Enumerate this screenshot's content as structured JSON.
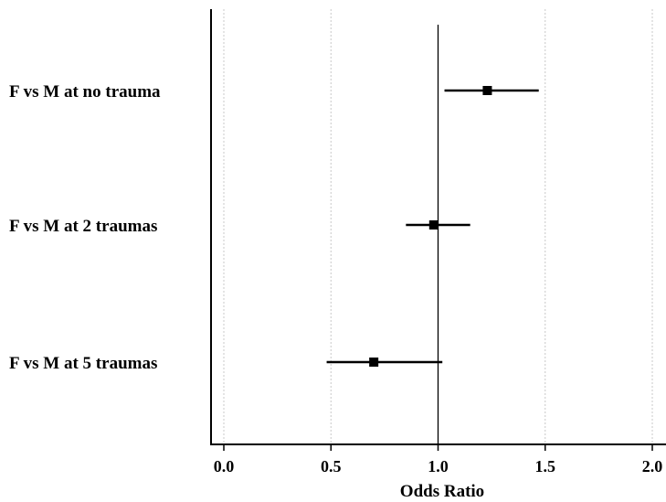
{
  "chart_data": {
    "type": "scatter",
    "subtype": "forest-plot",
    "title": "",
    "xlabel": "Odds Ratio",
    "ylabel": "",
    "xlim": [
      -0.03,
      2.05
    ],
    "xticks": [
      0.0,
      0.5,
      1.0,
      1.5,
      2.0
    ],
    "xtick_labels": [
      "0.0",
      "0.5",
      "1.0",
      "1.5",
      "2.0"
    ],
    "reference_line": 1.0,
    "grid": "vertical dotted at ticks",
    "categories": [
      "F vs M at no trauma",
      "F vs M at 2 traumas",
      "F vs M at 5 traumas"
    ],
    "series": [
      {
        "estimates": [
          1.23,
          0.98,
          0.7
        ],
        "ci_lower": [
          1.03,
          0.85,
          0.48
        ],
        "ci_upper": [
          1.47,
          1.15,
          1.02
        ]
      }
    ]
  }
}
